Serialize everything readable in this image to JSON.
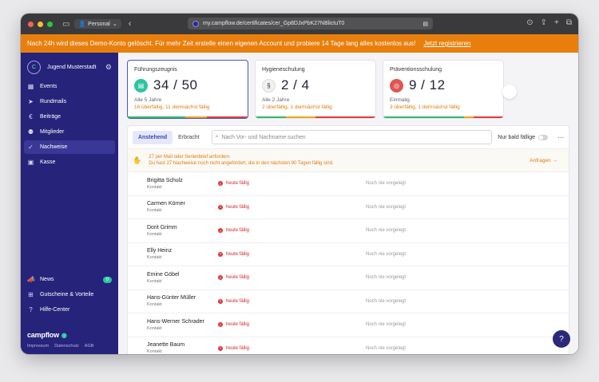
{
  "browser": {
    "profile": "Personal",
    "url": "my.campflow.de/certificates/cer_Gp8DJxPbK27NBlictuT0"
  },
  "banner": {
    "text": "Nach 24h wird dieses Demo-Konto gelöscht.  Für mehr Zeit erstelle einen eigenen Account und probiere 14 Tage lang alles kostenlos aus!",
    "link": "Jetzt registrieren"
  },
  "sidebar": {
    "org_name": "Jugend Musterstadt",
    "items": [
      {
        "label": "Events",
        "icon": "calendar-icon"
      },
      {
        "label": "Rundmails",
        "icon": "send-icon"
      },
      {
        "label": "Beiträge",
        "icon": "euro-icon"
      },
      {
        "label": "Mitglieder",
        "icon": "users-icon"
      },
      {
        "label": "Nachweise",
        "icon": "certificate-icon"
      },
      {
        "label": "Kasse",
        "icon": "cash-register-icon"
      }
    ],
    "bottom_items": [
      {
        "label": "News",
        "icon": "megaphone-icon",
        "badge": "0"
      },
      {
        "label": "Gutscheine & Vorteile",
        "icon": "gift-icon"
      },
      {
        "label": "Hilfe-Center",
        "icon": "help-icon"
      }
    ],
    "brand": "campflow",
    "footer": [
      "Impressum",
      "Datenschutz",
      "AGB"
    ]
  },
  "cards": [
    {
      "title": "Führungszeugnis",
      "count": "34 / 50",
      "sub": "Alle 5 Jahre",
      "warn": "16 überfällig, 11 demnächst fällig",
      "color": "#2ec4a0"
    },
    {
      "title": "Hygieneschulung",
      "count": "2 / 4",
      "sub": "Alle 2 Jahre",
      "warn": "2 überfällig, 1 demnächst fällig",
      "color": "#f1f1f1"
    },
    {
      "title": "Präventionsschulung",
      "count": "9 / 12",
      "sub": "Einmalig",
      "warn": "3 überfällig, 1 demnächst fällig",
      "color": "#e05555"
    }
  ],
  "list": {
    "tabs": [
      "Anstehend",
      "Erbracht"
    ],
    "search_placeholder": "Nach Vor- und Nachname suchen",
    "toggle_label": "Nur bald fällige",
    "notice_title": "27 per Mail oder Serienbrief anfordern",
    "notice_body": "Du hast 27 Nachweise noch nicht angefordert, die in den nächsten 90 Tagen fällig sind.",
    "notice_action": "Anfragen",
    "rows": [
      {
        "name": "Brigitta Schulz",
        "role": "Kontakt",
        "due": "heute fällig",
        "status": "Noch nie vorgelegt"
      },
      {
        "name": "Carmen Körner",
        "role": "Kontakt",
        "due": "heute fällig",
        "status": "Noch nie vorgelegt"
      },
      {
        "name": "Dorit Grimm",
        "role": "Kontakt",
        "due": "heute fällig",
        "status": "Noch nie vorgelegt"
      },
      {
        "name": "Elly Heinz",
        "role": "Kontakt",
        "due": "heute fällig",
        "status": "Noch nie vorgelegt"
      },
      {
        "name": "Emine Göbel",
        "role": "Kontakt",
        "due": "heute fällig",
        "status": "Noch nie vorgelegt"
      },
      {
        "name": "Hans-Günter Müller",
        "role": "Kontakt",
        "due": "heute fällig",
        "status": "Noch nie vorgelegt"
      },
      {
        "name": "Hans-Werner Schrader",
        "role": "Kontakt",
        "due": "heute fällig",
        "status": "Noch nie vorgelegt"
      },
      {
        "name": "Jeanette Baum",
        "role": "Kontakt",
        "due": "heute fällig",
        "status": "Noch nie vorgelegt"
      }
    ]
  }
}
